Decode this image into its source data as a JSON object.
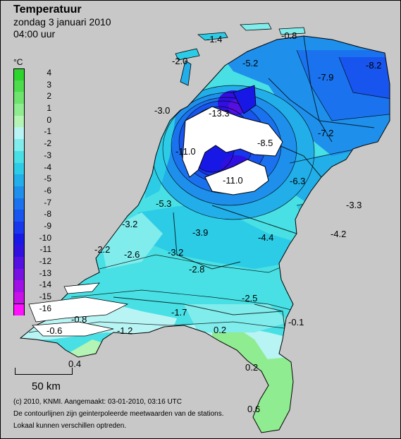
{
  "header": {
    "title": "Temperatuur",
    "date": "zondag 3 januari 2010",
    "time": "04:00 uur"
  },
  "legend": {
    "unit": "°C",
    "items": [
      {
        "label": "4",
        "color": "#2ed42e"
      },
      {
        "label": "3",
        "color": "#4cdc4c"
      },
      {
        "label": "2",
        "color": "#6ee46e"
      },
      {
        "label": "1",
        "color": "#90ec90"
      },
      {
        "label": "0",
        "color": "#b4f4b4"
      },
      {
        "label": "-1",
        "color": "#b8f4f4"
      },
      {
        "label": "-2",
        "color": "#80ecec"
      },
      {
        "label": "-3",
        "color": "#48e0e4"
      },
      {
        "label": "-4",
        "color": "#2ccce6"
      },
      {
        "label": "-5",
        "color": "#22aee8"
      },
      {
        "label": "-6",
        "color": "#1e90ec"
      },
      {
        "label": "-7",
        "color": "#1a72ee"
      },
      {
        "label": "-8",
        "color": "#1854ee"
      },
      {
        "label": "-9",
        "color": "#1836ec"
      },
      {
        "label": "-10",
        "color": "#1818e6"
      },
      {
        "label": "-11",
        "color": "#3010e0"
      },
      {
        "label": "-12",
        "color": "#5410e0"
      },
      {
        "label": "-13",
        "color": "#7810e2"
      },
      {
        "label": "-14",
        "color": "#a010e6"
      },
      {
        "label": "-15",
        "color": "#c810e8"
      },
      {
        "label": "-16",
        "color": "#ff10ff"
      }
    ]
  },
  "contour_labels": [
    {
      "text": "-1.4"
    },
    {
      "text": "-0.8"
    },
    {
      "text": "-2.0"
    },
    {
      "text": "-5.2"
    },
    {
      "text": "-8.2"
    },
    {
      "text": "-7.9"
    },
    {
      "text": "-3.0"
    },
    {
      "text": "-13.3"
    },
    {
      "text": "-7.2"
    },
    {
      "text": "-11.0"
    },
    {
      "text": "-8.5"
    },
    {
      "text": "-11.0"
    },
    {
      "text": "-6.3"
    },
    {
      "text": "-3.3"
    },
    {
      "text": "-5.3"
    },
    {
      "text": "-3.2"
    },
    {
      "text": "-3.9"
    },
    {
      "text": "-4.4"
    },
    {
      "text": "-4.2"
    },
    {
      "text": "-2.2"
    },
    {
      "text": "-2.6"
    },
    {
      "text": "-3.2"
    },
    {
      "text": "-2.8"
    },
    {
      "text": "-2.5"
    },
    {
      "text": "-1.7"
    },
    {
      "text": "-0.8"
    },
    {
      "text": "-0.1"
    },
    {
      "text": "-0.6"
    },
    {
      "text": "-1.2"
    },
    {
      "text": "0.2"
    },
    {
      "text": "0.4"
    },
    {
      "text": "0.2"
    },
    {
      "text": "0.6"
    }
  ],
  "scale": {
    "label": "50 km"
  },
  "footer": {
    "line1": "(c) 2010, KNMI. Aangemaakt: 03-01-2010, 03:16 UTC",
    "line2": "De contourlijnen zijn geinterpoleerde meetwaarden van de stations.",
    "line3": "Lokaal kunnen verschillen optreden."
  }
}
